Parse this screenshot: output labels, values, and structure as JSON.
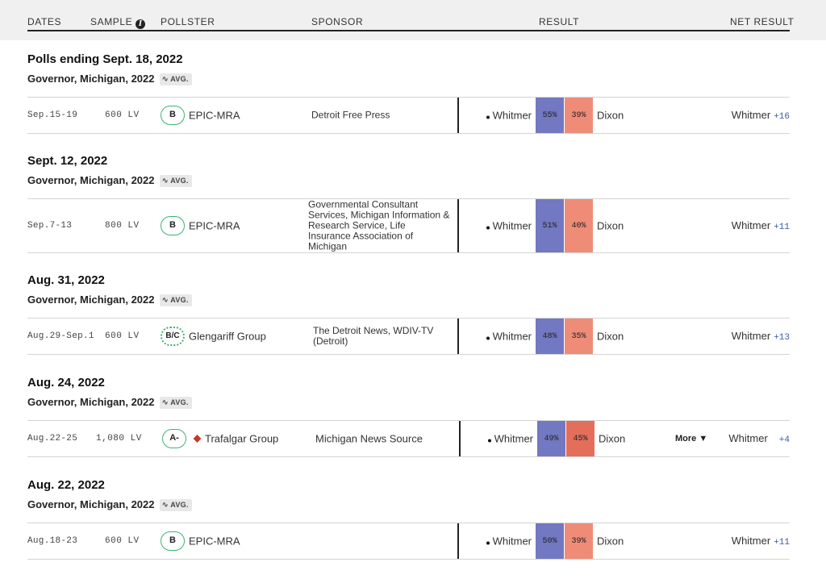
{
  "header": {
    "dates": "DATES",
    "sample": "SAMPLE",
    "info_icon": "info-icon",
    "pollster": "POLLSTER",
    "sponsor": "SPONSOR",
    "result": "RESULT",
    "net_result": "NET RESULT"
  },
  "avg_label": "AVG.",
  "colors": {
    "dem": "#7378c2",
    "rep": "#ef8c78",
    "grade_border": "#3cb371",
    "net_margin": "#3a5aa8"
  },
  "groups": [
    {
      "title": "Polls ending Sept. 18, 2022",
      "race": "Governor, Michigan, 2022",
      "poll": {
        "dates": "Sep.15-19",
        "sample": "600 LV",
        "grade": "B",
        "pollster": "EPIC-MRA",
        "sponsor": "Detroit Free Press",
        "cand1": "Whitmer",
        "pct1": "55%",
        "pct2": "39%",
        "cand2": "Dixon",
        "net_leader": "Whitmer",
        "net_margin": "+16"
      }
    },
    {
      "title": "Sept. 12, 2022",
      "race": "Governor, Michigan, 2022",
      "poll": {
        "dates": "Sep.7-13",
        "sample": "800 LV",
        "grade": "B",
        "pollster": "EPIC-MRA",
        "sponsor": "Governmental Consultant Services, Michigan Information & Research Service, Life Insurance Association of Michigan",
        "cand1": "Whitmer",
        "pct1": "51%",
        "pct2": "40%",
        "cand2": "Dixon",
        "net_leader": "Whitmer",
        "net_margin": "+11"
      }
    },
    {
      "title": "Aug. 31, 2022",
      "race": "Governor, Michigan, 2022",
      "poll": {
        "dates": "Aug.29-Sep.1",
        "sample": "600 LV",
        "grade": "B/C",
        "pollster": "Glengariff Group",
        "sponsor": "The Detroit News, WDIV-TV (Detroit)",
        "cand1": "Whitmer",
        "pct1": "48%",
        "pct2": "35%",
        "cand2": "Dixon",
        "net_leader": "Whitmer",
        "net_margin": "+13"
      }
    },
    {
      "title": "Aug. 24, 2022",
      "race": "Governor, Michigan, 2022",
      "poll": {
        "dates": "Aug.22-25",
        "sample": "1,080 LV",
        "grade": "A-",
        "pollster": "Trafalgar Group",
        "sponsor": "Michigan News Source",
        "cand1": "Whitmer",
        "pct1": "49%",
        "pct2": "45%",
        "cand2": "Dixon",
        "more": "More",
        "more_icon": "chevron-down-icon",
        "net_leader": "Whitmer",
        "net_margin": "+4"
      }
    },
    {
      "title": "Aug. 22, 2022",
      "race": "Governor, Michigan, 2022",
      "poll": {
        "dates": "Aug.18-23",
        "sample": "600 LV",
        "grade": "B",
        "pollster": "EPIC-MRA",
        "sponsor": "",
        "cand1": "Whitmer",
        "pct1": "50%",
        "pct2": "39%",
        "cand2": "Dixon",
        "net_leader": "Whitmer",
        "net_margin": "+11"
      }
    }
  ]
}
